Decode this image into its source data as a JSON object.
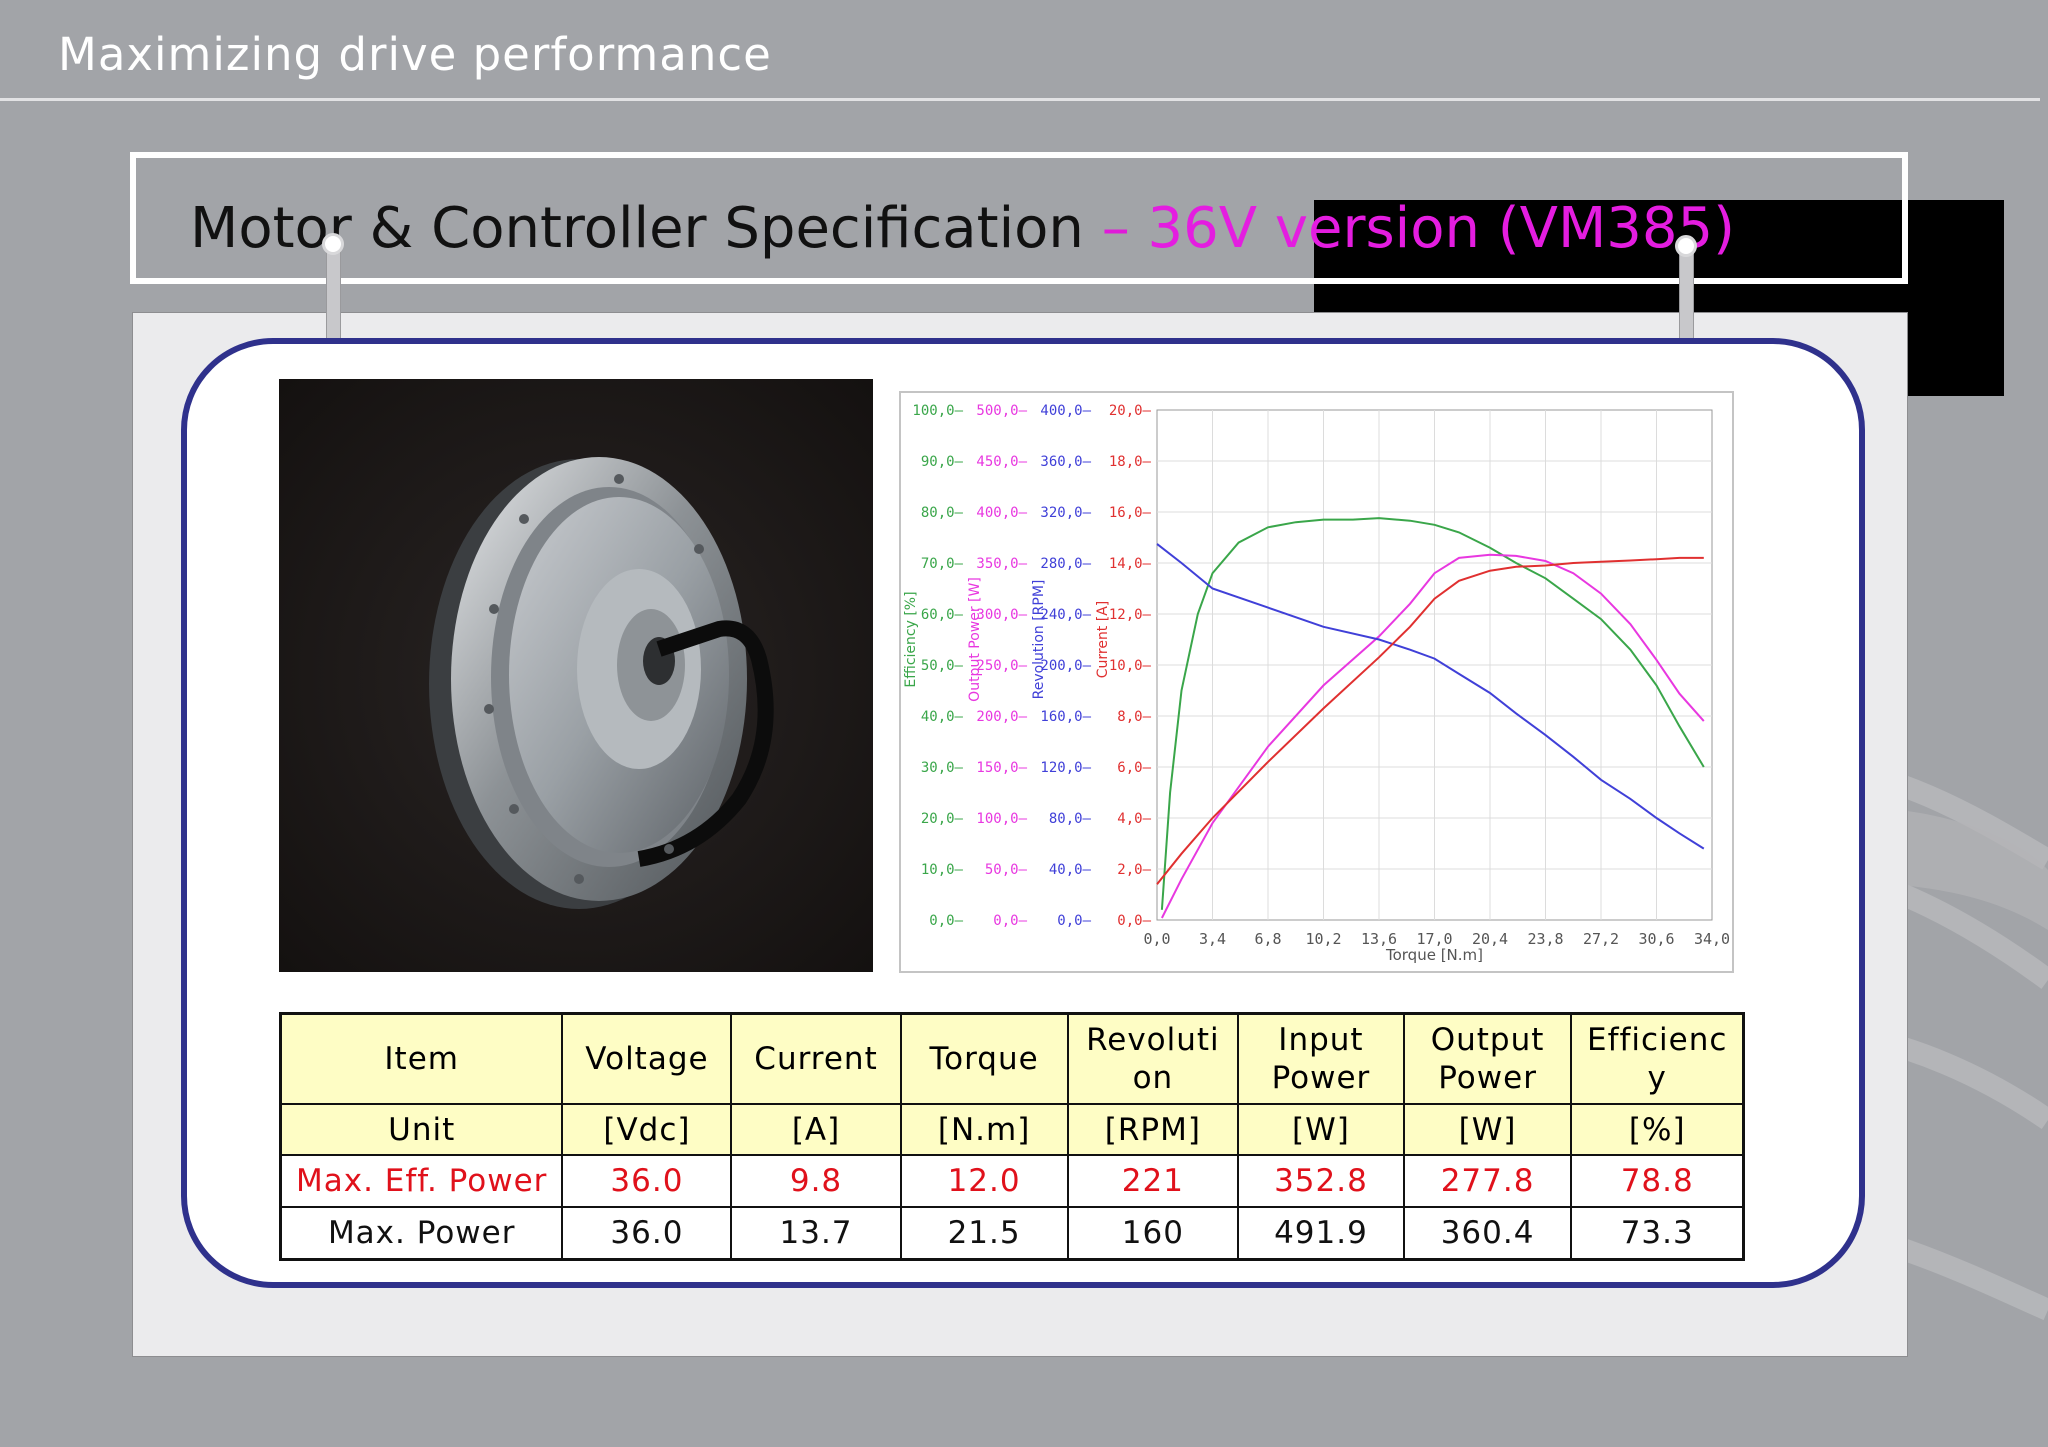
{
  "header": {
    "title": "Maximizing drive performance"
  },
  "slide": {
    "title_main": "Motor & Controller Specification",
    "title_dash": " – ",
    "title_version": "36V version (VM385)"
  },
  "image": {
    "alt": "Hub motor photo"
  },
  "colors": {
    "green": "#3aa64a",
    "magenta": "#e838e0",
    "blue": "#4040d8",
    "red": "#e03030",
    "accent": "#2f318c"
  },
  "chart_data": {
    "type": "line",
    "xlabel": "Torque [N.m]",
    "x_ticks": [
      "0,0",
      "3,4",
      "6,8",
      "10,2",
      "13,6",
      "17,0",
      "20,4",
      "23,8",
      "27,2",
      "30,6",
      "34,0"
    ],
    "xlim": [
      0,
      34
    ],
    "axes": [
      {
        "label": "Efficiency [%]",
        "color": "#3aa64a",
        "ticks": [
          "100,0",
          "90,0",
          "80,0",
          "70,0",
          "60,0",
          "50,0",
          "40,0",
          "30,0",
          "20,0",
          "10,0",
          "0,0"
        ],
        "lim": [
          0,
          100
        ]
      },
      {
        "label": "Output Power [W]",
        "color": "#e838e0",
        "ticks": [
          "500,0",
          "450,0",
          "400,0",
          "350,0",
          "300,0",
          "250,0",
          "200,0",
          "150,0",
          "100,0",
          "50,0",
          "0,0"
        ],
        "lim": [
          0,
          500
        ]
      },
      {
        "label": "Revolution [RPM]",
        "color": "#4040d8",
        "ticks": [
          "400,0",
          "360,0",
          "320,0",
          "280,0",
          "240,0",
          "200,0",
          "160,0",
          "120,0",
          "80,0",
          "40,0",
          "0,0"
        ],
        "lim": [
          0,
          400
        ]
      },
      {
        "label": "Current [A]",
        "color": "#e03030",
        "ticks": [
          "20,0",
          "18,0",
          "16,0",
          "14,0",
          "12,0",
          "10,0",
          "8,0",
          "6,0",
          "4,0",
          "2,0",
          "0,0"
        ],
        "lim": [
          0,
          20
        ]
      }
    ],
    "series": [
      {
        "axis": 0,
        "color": "#3aa64a",
        "x": [
          0.3,
          0.8,
          1.5,
          2.5,
          3.4,
          5,
          6.8,
          8.5,
          10.2,
          12,
          13.6,
          15.5,
          17,
          18.5,
          20.4,
          22,
          23.8,
          25.5,
          27.2,
          29,
          30.6,
          32,
          33.5
        ],
        "y": [
          2,
          25,
          45,
          60,
          68,
          74,
          77,
          78,
          78.5,
          78.5,
          78.8,
          78.3,
          77.5,
          76,
          73,
          70,
          67,
          63,
          59,
          53,
          46,
          38,
          30
        ]
      },
      {
        "axis": 1,
        "color": "#e838e0",
        "x": [
          0.3,
          1.5,
          3.4,
          6.8,
          10.2,
          13.6,
          15.5,
          17,
          18.5,
          20.4,
          22,
          23.8,
          25.5,
          27.2,
          29,
          30.6,
          32,
          33.5
        ],
        "y": [
          2,
          40,
          95,
          170,
          230,
          278,
          310,
          340,
          355,
          358,
          357,
          352,
          340,
          320,
          290,
          255,
          222,
          195
        ]
      },
      {
        "axis": 2,
        "color": "#4040d8",
        "x": [
          0,
          1.5,
          3.4,
          6.8,
          10.2,
          13.6,
          15.5,
          17,
          18.5,
          20.4,
          22,
          23.8,
          25.5,
          27.2,
          29,
          30.6,
          32,
          33.5
        ],
        "y": [
          295,
          280,
          260,
          245,
          230,
          220,
          212,
          205,
          193,
          178,
          162,
          145,
          128,
          110,
          95,
          80,
          68,
          56
        ]
      },
      {
        "axis": 3,
        "color": "#e03030",
        "x": [
          0,
          1.5,
          3.4,
          6.8,
          10.2,
          13.6,
          15.5,
          17,
          18.5,
          20.4,
          22,
          23.8,
          25.5,
          27.2,
          29,
          30.6,
          32,
          33.5
        ],
        "y": [
          1.4,
          2.6,
          4.0,
          6.2,
          8.3,
          10.3,
          11.5,
          12.6,
          13.3,
          13.7,
          13.85,
          13.9,
          14.0,
          14.05,
          14.1,
          14.15,
          14.2,
          14.2
        ]
      }
    ]
  },
  "table": {
    "headers": [
      [
        "Item"
      ],
      [
        "Voltage"
      ],
      [
        "Current"
      ],
      [
        "Torque"
      ],
      [
        "Revoluti",
        "on"
      ],
      [
        "Input",
        "Power"
      ],
      [
        "Output",
        "Power"
      ],
      [
        "Efficienc",
        "y"
      ]
    ],
    "units": [
      "Unit",
      "[Vdc]",
      "[A]",
      "[N.m]",
      "[RPM]",
      "[W]",
      "[W]",
      "[%]"
    ],
    "rows": [
      [
        "Max. Eff. Power",
        "36.0",
        "9.8",
        "12.0",
        "221",
        "352.8",
        "277.8",
        "78.8"
      ],
      [
        "Max. Power",
        "36.0",
        "13.7",
        "21.5",
        "160",
        "491.9",
        "360.4",
        "73.3"
      ]
    ]
  }
}
